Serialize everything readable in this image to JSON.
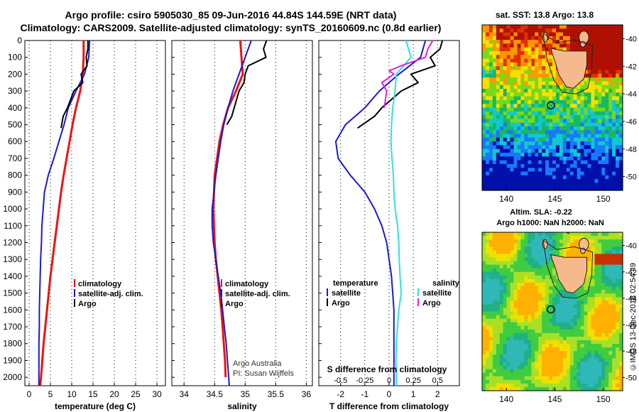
{
  "title_line1": "Argo profile: csiro 5905030_85 09-Jun-2016 44.84S 144.59E (NRT data)",
  "title_line2": "Climatology: CARS2009. Satellite-adjusted climatology: synTS_20160609.nc (0.8d earlier)",
  "side_stamp": "©IMOS 13-Dec-2018 02:54:49",
  "colors": {
    "climatology": "#ee1111",
    "satellite": "#1a1acc",
    "argo": "#000000",
    "sat_salinity": "#33e0e0",
    "argo_salinity": "#e022e0"
  },
  "depth_ticks": [
    "0",
    "100",
    "200",
    "300",
    "400",
    "500",
    "600",
    "700",
    "800",
    "900",
    "1000",
    "1100",
    "1200",
    "1300",
    "1400",
    "1500",
    "1600",
    "1700",
    "1800",
    "1900",
    "2000"
  ],
  "chart_data": [
    {
      "type": "line",
      "name": "temperature-panel",
      "xlabel": "temperature (deg C)",
      "xlim": [
        -1,
        32
      ],
      "ylim": [
        0,
        2050
      ],
      "xticks": [
        0,
        5,
        10,
        15,
        20,
        25,
        30
      ],
      "legend": [
        "climatology",
        "satellite-adj. clim.",
        "Argo"
      ],
      "series": [
        {
          "name": "climatology",
          "color": "climatology",
          "x": [
            12.8,
            12.8,
            12.6,
            12.0,
            11.0,
            10.2,
            9.5,
            8.8,
            8.1,
            7.5,
            7.0,
            6.5,
            6.0,
            5.5,
            5.0,
            4.6,
            4.2,
            3.8,
            3.4,
            3.1,
            2.8,
            2.6
          ],
          "y": [
            0,
            100,
            200,
            300,
            400,
            500,
            600,
            700,
            800,
            900,
            1000,
            1100,
            1200,
            1300,
            1400,
            1500,
            1600,
            1700,
            1800,
            1900,
            2000,
            2050
          ]
        },
        {
          "name": "satellite-adj. clim.",
          "color": "satellite",
          "x": [
            14.2,
            14.0,
            13.0,
            11.0,
            9.2,
            8.2,
            7.0,
            5.8,
            4.5,
            3.6,
            3.3,
            3.0,
            2.9,
            2.7,
            2.6,
            2.5,
            2.4,
            2.4,
            2.3,
            2.3,
            2.3,
            2.3
          ],
          "y": [
            0,
            100,
            200,
            300,
            400,
            500,
            600,
            700,
            800,
            900,
            1000,
            1100,
            1200,
            1300,
            1400,
            1500,
            1600,
            1700,
            1800,
            1900,
            2000,
            2050
          ]
        },
        {
          "name": "Argo",
          "color": "argo",
          "x": [
            13.8,
            13.8,
            13.4,
            13.6,
            12.2,
            12.6,
            10.5,
            9.0,
            8.0,
            7.5
          ],
          "y": [
            0,
            50,
            100,
            150,
            200,
            250,
            300,
            400,
            450,
            520
          ]
        }
      ]
    },
    {
      "type": "line",
      "name": "salinity-panel",
      "xlabel": "salinity",
      "xlim": [
        33.8,
        36.1
      ],
      "ylim": [
        0,
        2050
      ],
      "xticks": [
        34,
        34.5,
        35,
        35.5,
        36
      ],
      "legend": [
        "climatology",
        "satellite-adj. clim.",
        "Argo"
      ],
      "annotation": [
        "Argo Australia",
        "PI: Susan Wijffels"
      ],
      "series": [
        {
          "name": "climatology",
          "color": "climatology",
          "x": [
            34.92,
            34.94,
            34.96,
            34.85,
            34.72,
            34.64,
            34.58,
            34.54,
            34.5,
            34.49,
            34.48,
            34.49,
            34.5,
            34.52,
            34.55,
            34.58,
            34.61,
            34.63,
            34.65,
            34.67,
            34.68
          ],
          "y": [
            0,
            100,
            200,
            300,
            400,
            500,
            600,
            700,
            800,
            900,
            1000,
            1100,
            1200,
            1300,
            1400,
            1500,
            1600,
            1700,
            1800,
            1900,
            2000
          ]
        },
        {
          "name": "satellite-adj. clim.",
          "color": "satellite",
          "x": [
            35.1,
            35.0,
            34.9,
            34.8,
            34.72,
            34.65,
            34.6,
            34.56,
            34.52,
            34.49,
            34.46,
            34.46,
            34.48,
            34.52,
            34.56,
            34.6,
            34.63,
            34.66,
            34.69,
            34.71,
            34.73,
            34.74
          ],
          "y": [
            0,
            100,
            200,
            300,
            400,
            500,
            600,
            700,
            800,
            900,
            1000,
            1100,
            1200,
            1300,
            1400,
            1500,
            1600,
            1700,
            1800,
            1900,
            2000,
            2050
          ]
        },
        {
          "name": "Argo",
          "color": "argo",
          "x": [
            35.35,
            35.3,
            35.34,
            35.05,
            35.0,
            34.98,
            34.9,
            34.82,
            34.78,
            34.7
          ],
          "y": [
            0,
            50,
            100,
            150,
            200,
            250,
            300,
            400,
            450,
            500
          ]
        }
      ]
    },
    {
      "type": "line",
      "name": "difference-panel",
      "xlabel": "T difference from climatology",
      "xlabel2": "S difference from climatology",
      "xlim": [
        -2.9,
        2.9
      ],
      "ylim": [
        0,
        2050
      ],
      "xticks": [
        -2,
        -1,
        0,
        1,
        2
      ],
      "xticks2": [
        "-0.5",
        "-0.25",
        "0",
        "0.25",
        "0.5"
      ],
      "legend_temperature_title": "temperature",
      "legend_salinity_title": "salinity",
      "legend": [
        "satellite",
        "Argo",
        "satellite",
        "Argo"
      ],
      "series": [
        {
          "name": "satellite",
          "group": "temperature",
          "color": "satellite",
          "x": [
            1.5,
            1.3,
            0.4,
            -0.4,
            -1.0,
            -1.8,
            -2.2,
            -2.1,
            -1.6,
            -1.0,
            -0.6,
            -0.3,
            -0.1,
            0.0,
            0.1,
            0.15,
            0.2,
            0.2,
            0.2,
            0.2,
            0.2,
            0.2
          ],
          "y": [
            0,
            100,
            200,
            300,
            400,
            500,
            600,
            700,
            800,
            900,
            1000,
            1100,
            1200,
            1300,
            1400,
            1500,
            1600,
            1700,
            1800,
            1900,
            2000,
            2050
          ]
        },
        {
          "name": "Argo",
          "group": "temperature",
          "color": "argo",
          "x": [
            2.2,
            2.1,
            1.7,
            1.9,
            0.9,
            1.2,
            0.5,
            -0.3,
            -0.6,
            -1.3
          ],
          "y": [
            0,
            50,
            100,
            150,
            200,
            250,
            300,
            400,
            450,
            520
          ]
        },
        {
          "name": "satellite",
          "group": "salinity",
          "color": "sat_salinity",
          "x": [
            0.7,
            0.9,
            0.3,
            0.25,
            0.15,
            0.1,
            0.08,
            0.12,
            0.18,
            0.2,
            0.25,
            0.35,
            0.4,
            0.42,
            0.45,
            0.5,
            0.4,
            0.35,
            0.3,
            0.28,
            0.3,
            0.3
          ],
          "y": [
            0,
            100,
            200,
            300,
            400,
            500,
            600,
            700,
            800,
            900,
            1000,
            1100,
            1200,
            1300,
            1400,
            1500,
            1600,
            1700,
            1800,
            1900,
            2000,
            2050
          ]
        },
        {
          "name": "Argo",
          "group": "salinity",
          "color": "argo_salinity",
          "x": [
            1.8,
            1.6,
            1.5,
            0.5,
            0.0,
            0.2,
            -0.3,
            -0.1,
            -0.2
          ],
          "y": [
            0,
            50,
            100,
            150,
            180,
            200,
            250,
            300,
            400
          ]
        }
      ]
    },
    {
      "type": "heatmap",
      "name": "sst-map",
      "title": "sat. SST: 13.8 Argo: 13.8",
      "xlim": [
        137.5,
        152
      ],
      "ylim": [
        -51,
        -39
      ],
      "xticks": [
        140,
        145,
        150
      ],
      "yticks": [
        -40,
        -42,
        -44,
        -46,
        -48,
        -50
      ],
      "argo_position": [
        144.59,
        -44.84
      ]
    },
    {
      "type": "heatmap",
      "name": "sla-map",
      "title": "Altim. SLA: -0.22",
      "subtitle": "Argo h1000: NaN h2000: NaN",
      "xlim": [
        137.5,
        152
      ],
      "ylim": [
        -51,
        -39
      ],
      "xticks": [
        140,
        145,
        150
      ],
      "yticks": [
        -40,
        -42,
        -44,
        -46,
        -48,
        -50
      ],
      "argo_position": [
        144.59,
        -44.84
      ]
    }
  ]
}
